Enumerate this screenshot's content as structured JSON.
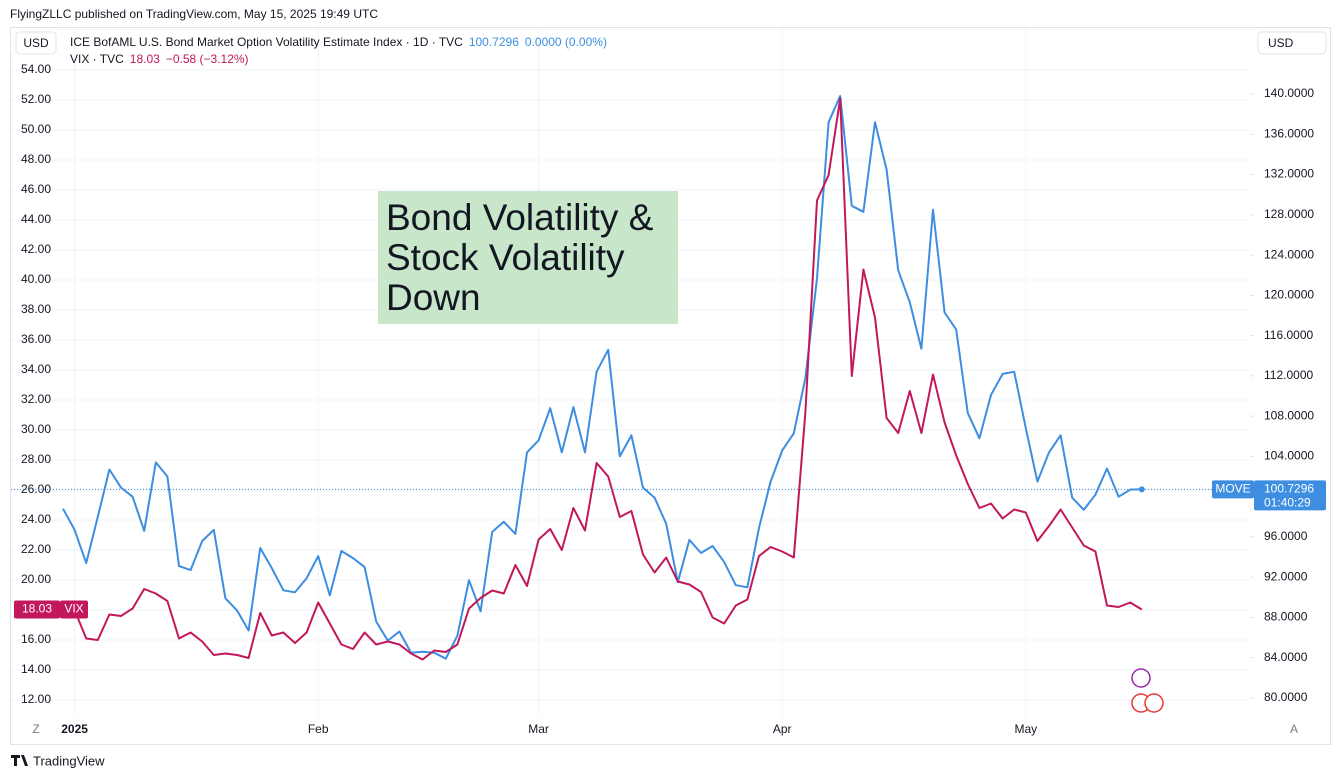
{
  "chart_data": {
    "type": "line",
    "header": "FlyingZLLC published on TradingView.com, May 15, 2025 19:49 UTC",
    "currency_left": "USD",
    "currency_right": "USD",
    "footer": "TradingView",
    "corner_left": "Z",
    "corner_right": "A",
    "annotation": {
      "lines": [
        "Bond Volatility &",
        "Stock Volatility",
        "Down"
      ]
    },
    "categories": [
      null,
      "2025",
      null,
      null,
      null,
      null,
      null,
      null,
      null,
      null,
      null,
      null,
      null,
      null,
      null,
      null,
      null,
      null,
      null,
      null,
      null,
      null,
      "Feb",
      null,
      null,
      null,
      null,
      null,
      null,
      null,
      null,
      null,
      null,
      null,
      null,
      null,
      null,
      null,
      null,
      null,
      null,
      "Mar",
      null,
      null,
      null,
      null,
      null,
      null,
      null,
      null,
      null,
      null,
      null,
      null,
      null,
      null,
      null,
      null,
      null,
      null,
      null,
      null,
      "Apr",
      null,
      null,
      null,
      null,
      null,
      null,
      null,
      null,
      null,
      null,
      null,
      null,
      null,
      null,
      null,
      null,
      null,
      null,
      null,
      null,
      "May",
      null,
      null,
      null,
      null,
      null,
      null,
      null,
      null,
      null,
      null
    ],
    "series": [
      {
        "name": "MOVE",
        "legend": "ICE BofAML U.S. Bond Market Option Volatility Estimate Index · 1D · TVC",
        "change": "0.0000 (0.00%)",
        "countdown": "01:40:29",
        "value_label": "100.7296",
        "color": "#3d8ee0",
        "axis": "y2",
        "values": [
          98.8,
          96.7,
          93.4,
          98.0,
          102.7,
          100.9,
          100.0,
          96.6,
          103.4,
          102.0,
          93.1,
          92.7,
          95.6,
          96.7,
          89.9,
          88.7,
          86.7,
          94.9,
          92.9,
          90.7,
          90.5,
          91.9,
          94.1,
          90.2,
          94.6,
          93.9,
          93.0,
          87.6,
          85.7,
          86.6,
          84.5,
          84.6,
          84.5,
          83.9,
          86.2,
          91.7,
          88.6,
          96.5,
          97.5,
          96.3,
          104.4,
          105.6,
          108.8,
          104.4,
          108.9,
          104.4,
          112.4,
          114.6,
          104.0,
          106.1,
          100.9,
          99.9,
          97.3,
          91.5,
          95.7,
          94.4,
          95.1,
          93.5,
          91.2,
          91.0,
          96.9,
          101.5,
          104.6,
          106.3,
          111.8,
          121.7,
          137.2,
          139.8,
          128.9,
          128.3,
          137.2,
          132.5,
          122.5,
          119.3,
          114.7,
          128.5,
          118.3,
          116.6,
          108.3,
          105.8,
          110.1,
          112.2,
          112.4,
          106.8,
          101.5,
          104.4,
          106.1,
          99.9,
          98.7,
          100.2,
          102.8,
          100.0,
          100.7,
          100.7296
        ]
      },
      {
        "name": "VIX",
        "legend": "VIX · TVC",
        "change": "−0.58 (−3.12%)",
        "value_label": "18.03",
        "color": "#c2185b",
        "axis": "y",
        "values": [
          18.5,
          18.0,
          16.1,
          16.0,
          17.7,
          17.6,
          18.1,
          19.4,
          19.1,
          18.6,
          16.1,
          16.5,
          15.9,
          15.0,
          15.1,
          15.0,
          14.8,
          17.8,
          16.3,
          16.5,
          15.8,
          16.5,
          18.5,
          17.1,
          15.7,
          15.4,
          16.5,
          15.7,
          15.9,
          15.7,
          15.1,
          14.7,
          15.3,
          15.2,
          15.7,
          18.1,
          18.8,
          19.3,
          19.1,
          21.0,
          19.6,
          22.7,
          23.4,
          22.0,
          24.8,
          23.3,
          27.8,
          26.9,
          24.2,
          24.6,
          21.7,
          20.5,
          21.5,
          19.9,
          19.7,
          19.2,
          17.5,
          17.1,
          18.3,
          18.7,
          21.6,
          22.2,
          21.9,
          21.5,
          31.2,
          45.3,
          47.0,
          52.1,
          33.6,
          40.7,
          37.5,
          30.8,
          29.8,
          32.6,
          29.8,
          33.7,
          30.5,
          28.3,
          26.4,
          24.8,
          25.1,
          24.1,
          24.7,
          24.5,
          22.6,
          23.6,
          24.7,
          23.5,
          22.3,
          21.9,
          18.3,
          18.2,
          18.5,
          18.03
        ]
      }
    ],
    "ylim": [
      10.93,
      56.8
    ],
    "yticks": [
      {
        "value": 12,
        "label": "12.00"
      },
      {
        "value": 14,
        "label": "14.00"
      },
      {
        "value": 16,
        "label": "16.00"
      },
      {
        "value": 18,
        "label": "18.00"
      },
      {
        "value": 20,
        "label": "20.00"
      },
      {
        "value": 22,
        "label": "22.00"
      },
      {
        "value": 24,
        "label": "24.00"
      },
      {
        "value": 26,
        "label": "26.00"
      },
      {
        "value": 28,
        "label": "28.00"
      },
      {
        "value": 30,
        "label": "30.00"
      },
      {
        "value": 32,
        "label": "32.00"
      },
      {
        "value": 34,
        "label": "34.00"
      },
      {
        "value": 36,
        "label": "36.00"
      },
      {
        "value": 38,
        "label": "38.00"
      },
      {
        "value": 40,
        "label": "40.00"
      },
      {
        "value": 42,
        "label": "42.00"
      },
      {
        "value": 44,
        "label": "44.00"
      },
      {
        "value": 46,
        "label": "46.00"
      },
      {
        "value": 48,
        "label": "48.00"
      },
      {
        "value": 50,
        "label": "50.00"
      },
      {
        "value": 52,
        "label": "52.00"
      },
      {
        "value": 54,
        "label": "54.00"
      }
    ],
    "y2lim": [
      78.21,
      146.56
    ],
    "y2ticks": [
      {
        "value": 80,
        "label": "80.0000"
      },
      {
        "value": 84,
        "label": "84.0000"
      },
      {
        "value": 88,
        "label": "88.0000"
      },
      {
        "value": 92,
        "label": "92.0000"
      },
      {
        "value": 96,
        "label": "96.0000"
      },
      {
        "value": 100,
        "label": "100.0000"
      },
      {
        "value": 104,
        "label": "104.0000"
      },
      {
        "value": 108,
        "label": "108.0000"
      },
      {
        "value": 112,
        "label": "112.0000"
      },
      {
        "value": 116,
        "label": "116.0000"
      },
      {
        "value": 120,
        "label": "120.0000"
      },
      {
        "value": 124,
        "label": "124.0000"
      },
      {
        "value": 128,
        "label": "128.0000"
      },
      {
        "value": 132,
        "label": "132.0000"
      },
      {
        "value": 136,
        "label": "136.0000"
      },
      {
        "value": 140,
        "label": "140.0000"
      }
    ],
    "grid": true
  }
}
